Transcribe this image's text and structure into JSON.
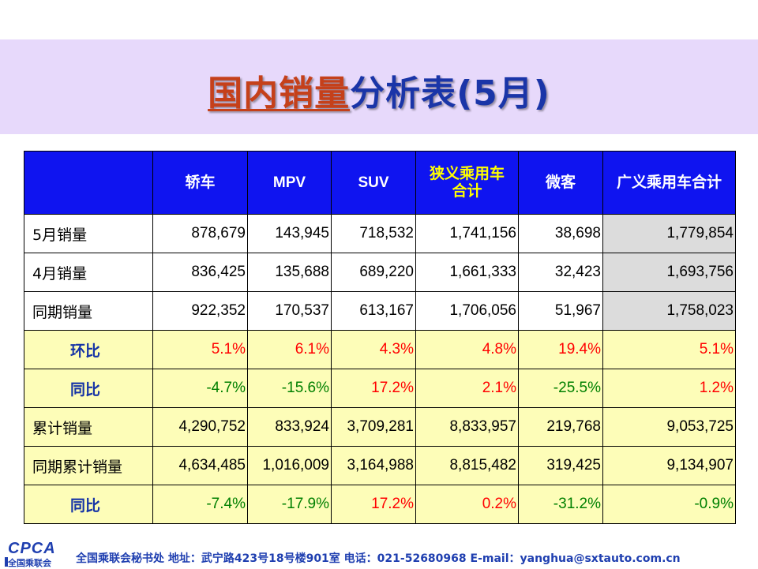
{
  "title": {
    "part1": "国内销量",
    "part2": "分析表(5月)"
  },
  "table": {
    "headers": [
      {
        "text": "",
        "highlight": false
      },
      {
        "text": "轿车",
        "highlight": false
      },
      {
        "text": "MPV",
        "highlight": false
      },
      {
        "text": "SUV",
        "highlight": false
      },
      {
        "text": "狭义乘用车合计",
        "line1": "狭义乘用车",
        "line2": "合计",
        "highlight": true
      },
      {
        "text": "微客",
        "highlight": false
      },
      {
        "text": "广义乘用车合计",
        "highlight": false
      }
    ],
    "rows": [
      {
        "label": "5月销量",
        "style": "white",
        "cells": [
          "878,679",
          "143,945",
          "718,532",
          "1,741,156",
          "38,698",
          "1,779,854"
        ],
        "colors": [
          "",
          "",
          "",
          "",
          "",
          ""
        ]
      },
      {
        "label": "4月销量",
        "style": "white",
        "cells": [
          "836,425",
          "135,688",
          "689,220",
          "1,661,333",
          "32,423",
          "1,693,756"
        ],
        "colors": [
          "",
          "",
          "",
          "",
          "",
          ""
        ]
      },
      {
        "label": "同期销量",
        "style": "white",
        "cells": [
          "922,352",
          "170,537",
          "613,167",
          "1,706,056",
          "51,967",
          "1,758,023"
        ],
        "colors": [
          "",
          "",
          "",
          "",
          "",
          ""
        ]
      },
      {
        "label": "环比",
        "style": "yellow",
        "cells": [
          "5.1%",
          "6.1%",
          "4.3%",
          "4.8%",
          "19.4%",
          "5.1%"
        ],
        "colors": [
          "red",
          "red",
          "red",
          "red",
          "red",
          "red"
        ]
      },
      {
        "label": "同比",
        "style": "yellow",
        "cells": [
          "-4.7%",
          "-15.6%",
          "17.2%",
          "2.1%",
          "-25.5%",
          "1.2%"
        ],
        "colors": [
          "green",
          "green",
          "red",
          "red",
          "green",
          "red"
        ]
      },
      {
        "label": "累计销量",
        "style": "yellow-plain",
        "cells": [
          "4,290,752",
          "833,924",
          "3,709,281",
          "8,833,957",
          "219,768",
          "9,053,725"
        ],
        "colors": [
          "",
          "",
          "",
          "",
          "",
          ""
        ]
      },
      {
        "label": "同期累计销量",
        "style": "yellow-plain",
        "cells": [
          "4,634,485",
          "1,016,009",
          "3,164,988",
          "8,815,482",
          "319,425",
          "9,134,907"
        ],
        "colors": [
          "",
          "",
          "",
          "",
          "",
          ""
        ]
      },
      {
        "label": "同比",
        "style": "yellow",
        "cells": [
          "-7.4%",
          "-17.9%",
          "17.2%",
          "0.2%",
          "-31.2%",
          "-0.9%"
        ],
        "colors": [
          "green",
          "green",
          "red",
          "red",
          "green",
          "green"
        ]
      }
    ]
  },
  "footer": {
    "logo_text": "CPCA",
    "logo_sub": "全国乘联会",
    "contact": "全国乘联会秘书处  地址：武宁路423号18号楼901室    电话：021-52680968   E-mail：yanghua@sxtauto.com.cn"
  },
  "colors": {
    "header_bg": "#0f14f0",
    "title_red": "#c5401a",
    "title_blue": "#1a35a8",
    "band": "#e7d9fb",
    "yellow_row": "#fdfdb8"
  }
}
